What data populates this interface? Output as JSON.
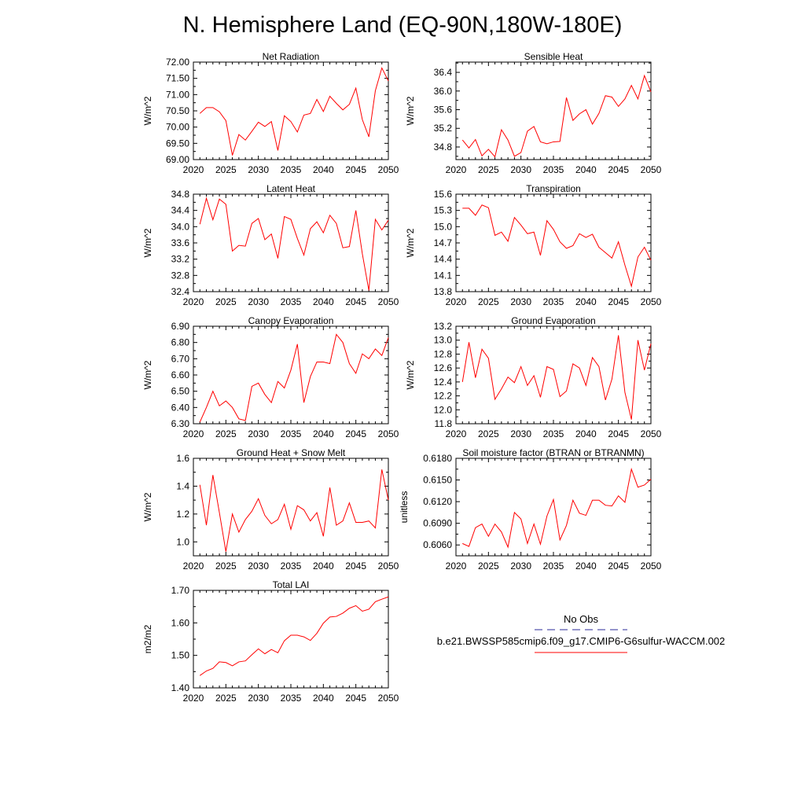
{
  "figure": {
    "title": "N. Hemisphere Land (EQ-90N,180W-180E)"
  },
  "legend": {
    "items": [
      {
        "label": "No Obs",
        "color": "#2b2b9a",
        "dash": true
      },
      {
        "label": "b.e21.BWSSP585cmip6.f09_g17.CMIP6-G6sulfur-WACCM.002",
        "color": "#ff0000",
        "dash": false
      }
    ]
  },
  "chart_data": [
    {
      "type": "line",
      "title": "Net Radiation",
      "ylabel": "W/m^2",
      "xlim": [
        2020,
        2050
      ],
      "ylim": [
        69.0,
        72.0
      ],
      "xticks": [
        2020,
        2025,
        2030,
        2035,
        2040,
        2045,
        2050
      ],
      "yticks": [
        69.0,
        69.5,
        70.0,
        70.5,
        71.0,
        71.5,
        72.0
      ],
      "ytick_labels": [
        "69.00",
        "69.50",
        "70.00",
        "70.50",
        "71.00",
        "71.50",
        "72.00"
      ],
      "series": [
        {
          "color": "#ff0000",
          "x": [
            2021,
            2022,
            2023,
            2024,
            2025,
            2026,
            2027,
            2028,
            2029,
            2030,
            2031,
            2032,
            2033,
            2034,
            2035,
            2036,
            2037,
            2038,
            2039,
            2040,
            2041,
            2042,
            2043,
            2044,
            2045,
            2046,
            2047,
            2048,
            2049,
            2050
          ],
          "y": [
            70.42,
            70.6,
            70.6,
            70.47,
            70.2,
            69.13,
            69.77,
            69.6,
            69.87,
            70.15,
            70.02,
            70.17,
            69.28,
            70.35,
            70.17,
            69.85,
            70.37,
            70.42,
            70.85,
            70.48,
            70.95,
            70.73,
            70.53,
            70.7,
            71.2,
            70.23,
            69.7,
            71.12,
            71.82,
            71.42
          ]
        }
      ]
    },
    {
      "type": "line",
      "title": "Sensible Heat",
      "ylabel": "W/m^2",
      "xlim": [
        2020,
        2050
      ],
      "ylim": [
        34.53,
        36.62
      ],
      "xticks": [
        2020,
        2025,
        2030,
        2035,
        2040,
        2045,
        2050
      ],
      "yticks": [
        34.8,
        35.2,
        35.6,
        36.0,
        36.4
      ],
      "ytick_labels": [
        "34.8",
        "35.2",
        "35.6",
        "36.0",
        "36.4"
      ],
      "series": [
        {
          "color": "#ff0000",
          "x": [
            2021,
            2022,
            2023,
            2024,
            2025,
            2026,
            2027,
            2028,
            2029,
            2030,
            2031,
            2032,
            2033,
            2034,
            2035,
            2036,
            2037,
            2038,
            2039,
            2040,
            2041,
            2042,
            2043,
            2044,
            2045,
            2046,
            2047,
            2048,
            2049,
            2050
          ],
          "y": [
            34.95,
            34.78,
            34.96,
            34.61,
            34.75,
            34.59,
            35.17,
            34.95,
            34.6,
            34.68,
            35.14,
            35.24,
            34.91,
            34.87,
            34.91,
            34.92,
            35.86,
            35.37,
            35.51,
            35.6,
            35.29,
            35.52,
            35.9,
            35.87,
            35.67,
            35.83,
            36.12,
            35.83,
            36.33,
            35.98
          ]
        }
      ]
    },
    {
      "type": "line",
      "title": "Latent Heat",
      "ylabel": "W/m^2",
      "xlim": [
        2020,
        2050
      ],
      "ylim": [
        32.4,
        34.8
      ],
      "xticks": [
        2020,
        2025,
        2030,
        2035,
        2040,
        2045,
        2050
      ],
      "yticks": [
        32.4,
        32.8,
        33.2,
        33.6,
        34.0,
        34.4,
        34.8
      ],
      "ytick_labels": [
        "32.4",
        "32.8",
        "33.2",
        "33.6",
        "34.0",
        "34.4",
        "34.8"
      ],
      "series": [
        {
          "color": "#ff0000",
          "x": [
            2021,
            2022,
            2023,
            2024,
            2025,
            2026,
            2027,
            2028,
            2029,
            2030,
            2031,
            2032,
            2033,
            2034,
            2035,
            2036,
            2037,
            2038,
            2039,
            2040,
            2041,
            2042,
            2043,
            2044,
            2045,
            2046,
            2047,
            2048,
            2049,
            2050
          ],
          "y": [
            34.06,
            34.7,
            34.17,
            34.68,
            34.55,
            33.4,
            33.54,
            33.52,
            34.08,
            34.2,
            33.68,
            33.82,
            33.22,
            34.25,
            34.18,
            33.71,
            33.3,
            33.95,
            34.12,
            33.85,
            34.28,
            34.08,
            33.48,
            33.51,
            34.4,
            33.33,
            32.43,
            34.18,
            33.92,
            34.16
          ]
        }
      ]
    },
    {
      "type": "line",
      "title": "Transpiration",
      "ylabel": "W/m^2",
      "xlim": [
        2020,
        2050
      ],
      "ylim": [
        13.8,
        15.6
      ],
      "xticks": [
        2020,
        2025,
        2030,
        2035,
        2040,
        2045,
        2050
      ],
      "yticks": [
        13.8,
        14.1,
        14.4,
        14.7,
        15.0,
        15.3,
        15.6
      ],
      "ytick_labels": [
        "13.8",
        "14.1",
        "14.4",
        "14.7",
        "15.0",
        "15.3",
        "15.6"
      ],
      "series": [
        {
          "color": "#ff0000",
          "x": [
            2021,
            2022,
            2023,
            2024,
            2025,
            2026,
            2027,
            2028,
            2029,
            2030,
            2031,
            2032,
            2033,
            2034,
            2035,
            2036,
            2037,
            2038,
            2039,
            2040,
            2041,
            2042,
            2043,
            2044,
            2045,
            2046,
            2047,
            2048,
            2049,
            2050
          ],
          "y": [
            15.34,
            15.34,
            15.21,
            15.4,
            15.35,
            14.84,
            14.9,
            14.73,
            15.17,
            15.03,
            14.87,
            14.9,
            14.47,
            15.11,
            14.95,
            14.72,
            14.6,
            14.65,
            14.87,
            14.8,
            14.86,
            14.62,
            14.52,
            14.42,
            14.72,
            14.29,
            13.9,
            14.44,
            14.62,
            14.38
          ]
        }
      ]
    },
    {
      "type": "line",
      "title": "Canopy Evaporation",
      "ylabel": "W/m^2",
      "xlim": [
        2020,
        2050
      ],
      "ylim": [
        6.3,
        6.9
      ],
      "xticks": [
        2020,
        2025,
        2030,
        2035,
        2040,
        2045,
        2050
      ],
      "yticks": [
        6.3,
        6.4,
        6.5,
        6.6,
        6.7,
        6.8,
        6.9
      ],
      "ytick_labels": [
        "6.30",
        "6.40",
        "6.50",
        "6.60",
        "6.70",
        "6.80",
        "6.90"
      ],
      "series": [
        {
          "color": "#ff0000",
          "x": [
            2021,
            2022,
            2023,
            2024,
            2025,
            2026,
            2027,
            2028,
            2029,
            2030,
            2031,
            2032,
            2033,
            2034,
            2035,
            2036,
            2037,
            2038,
            2039,
            2040,
            2041,
            2042,
            2043,
            2044,
            2045,
            2046,
            2047,
            2048,
            2049,
            2050
          ],
          "y": [
            6.31,
            6.4,
            6.5,
            6.41,
            6.44,
            6.4,
            6.33,
            6.32,
            6.53,
            6.55,
            6.48,
            6.43,
            6.56,
            6.52,
            6.63,
            6.79,
            6.43,
            6.59,
            6.68,
            6.68,
            6.67,
            6.85,
            6.8,
            6.67,
            6.61,
            6.73,
            6.7,
            6.76,
            6.72,
            6.83
          ]
        }
      ]
    },
    {
      "type": "line",
      "title": "Ground Evaporation",
      "ylabel": "W/m^2",
      "xlim": [
        2020,
        2050
      ],
      "ylim": [
        11.8,
        13.2
      ],
      "xticks": [
        2020,
        2025,
        2030,
        2035,
        2040,
        2045,
        2050
      ],
      "yticks": [
        11.8,
        12.0,
        12.2,
        12.4,
        12.6,
        12.8,
        13.0,
        13.2
      ],
      "ytick_labels": [
        "11.8",
        "12.0",
        "12.2",
        "12.4",
        "12.6",
        "12.8",
        "13.0",
        "13.2"
      ],
      "series": [
        {
          "color": "#ff0000",
          "x": [
            2021,
            2022,
            2023,
            2024,
            2025,
            2026,
            2027,
            2028,
            2029,
            2030,
            2031,
            2032,
            2033,
            2034,
            2035,
            2036,
            2037,
            2038,
            2039,
            2040,
            2041,
            2042,
            2043,
            2044,
            2045,
            2046,
            2047,
            2048,
            2049,
            2050
          ],
          "y": [
            12.4,
            12.97,
            12.46,
            12.87,
            12.74,
            12.15,
            12.3,
            12.47,
            12.39,
            12.62,
            12.35,
            12.49,
            12.18,
            12.62,
            12.58,
            12.19,
            12.27,
            12.66,
            12.6,
            12.35,
            12.75,
            12.62,
            12.14,
            12.44,
            13.07,
            12.25,
            11.86,
            13.0,
            12.57,
            12.95
          ]
        }
      ]
    },
    {
      "type": "line",
      "title": "Ground Heat + Snow Melt",
      "ylabel": "W/m^2",
      "xlim": [
        2020,
        2050
      ],
      "ylim": [
        0.9,
        1.6
      ],
      "xticks": [
        2020,
        2025,
        2030,
        2035,
        2040,
        2045,
        2050
      ],
      "yticks": [
        1.0,
        1.2,
        1.4,
        1.6
      ],
      "ytick_labels": [
        "1.0",
        "1.2",
        "1.4",
        "1.6"
      ],
      "series": [
        {
          "color": "#ff0000",
          "x": [
            2021,
            2022,
            2023,
            2024,
            2025,
            2026,
            2027,
            2028,
            2029,
            2030,
            2031,
            2032,
            2033,
            2034,
            2035,
            2036,
            2037,
            2038,
            2039,
            2040,
            2041,
            2042,
            2043,
            2044,
            2045,
            2046,
            2047,
            2048,
            2049,
            2050
          ],
          "y": [
            1.41,
            1.12,
            1.48,
            1.21,
            0.93,
            1.2,
            1.07,
            1.16,
            1.22,
            1.31,
            1.19,
            1.13,
            1.16,
            1.27,
            1.09,
            1.26,
            1.23,
            1.15,
            1.21,
            1.04,
            1.39,
            1.12,
            1.15,
            1.28,
            1.14,
            1.14,
            1.15,
            1.1,
            1.52,
            1.3
          ]
        }
      ]
    },
    {
      "type": "line",
      "title": "Soil moisture factor (BTRAN or BTRANMN)",
      "ylabel": "unitless",
      "xlim": [
        2020,
        2050
      ],
      "ylim": [
        0.6045,
        0.618
      ],
      "xticks": [
        2020,
        2025,
        2030,
        2035,
        2040,
        2045,
        2050
      ],
      "yticks": [
        0.606,
        0.609,
        0.612,
        0.615,
        0.618
      ],
      "ytick_labels": [
        "0.6060",
        "0.6090",
        "0.6120",
        "0.6150",
        "0.6180"
      ],
      "series": [
        {
          "color": "#ff0000",
          "x": [
            2021,
            2022,
            2023,
            2024,
            2025,
            2026,
            2027,
            2028,
            2029,
            2030,
            2031,
            2032,
            2033,
            2034,
            2035,
            2036,
            2037,
            2038,
            2039,
            2040,
            2041,
            2042,
            2043,
            2044,
            2045,
            2046,
            2047,
            2048,
            2049,
            2050
          ],
          "y": [
            0.6062,
            0.6058,
            0.6084,
            0.6089,
            0.6072,
            0.6089,
            0.6078,
            0.6057,
            0.6105,
            0.6096,
            0.6062,
            0.6089,
            0.6061,
            0.61,
            0.6123,
            0.6067,
            0.6087,
            0.6122,
            0.6104,
            0.6101,
            0.6122,
            0.6122,
            0.6115,
            0.6114,
            0.6128,
            0.6119,
            0.6165,
            0.614,
            0.6143,
            0.6151
          ]
        }
      ]
    },
    {
      "type": "line",
      "title": "Total LAI",
      "ylabel": "m2/m2",
      "xlim": [
        2020,
        2050
      ],
      "ylim": [
        1.4,
        1.7
      ],
      "xticks": [
        2020,
        2025,
        2030,
        2035,
        2040,
        2045,
        2050
      ],
      "yticks": [
        1.4,
        1.5,
        1.6,
        1.7
      ],
      "ytick_labels": [
        "1.40",
        "1.50",
        "1.60",
        "1.70"
      ],
      "series": [
        {
          "color": "#ff0000",
          "x": [
            2021,
            2022,
            2023,
            2024,
            2025,
            2026,
            2027,
            2028,
            2029,
            2030,
            2031,
            2032,
            2033,
            2034,
            2035,
            2036,
            2037,
            2038,
            2039,
            2040,
            2041,
            2042,
            2043,
            2044,
            2045,
            2046,
            2047,
            2048,
            2049,
            2050
          ],
          "y": [
            1.438,
            1.452,
            1.46,
            1.48,
            1.478,
            1.468,
            1.48,
            1.483,
            1.502,
            1.52,
            1.505,
            1.518,
            1.508,
            1.545,
            1.562,
            1.562,
            1.557,
            1.546,
            1.568,
            1.599,
            1.618,
            1.62,
            1.63,
            1.645,
            1.653,
            1.636,
            1.642,
            1.665,
            1.673,
            1.68
          ]
        }
      ]
    }
  ]
}
